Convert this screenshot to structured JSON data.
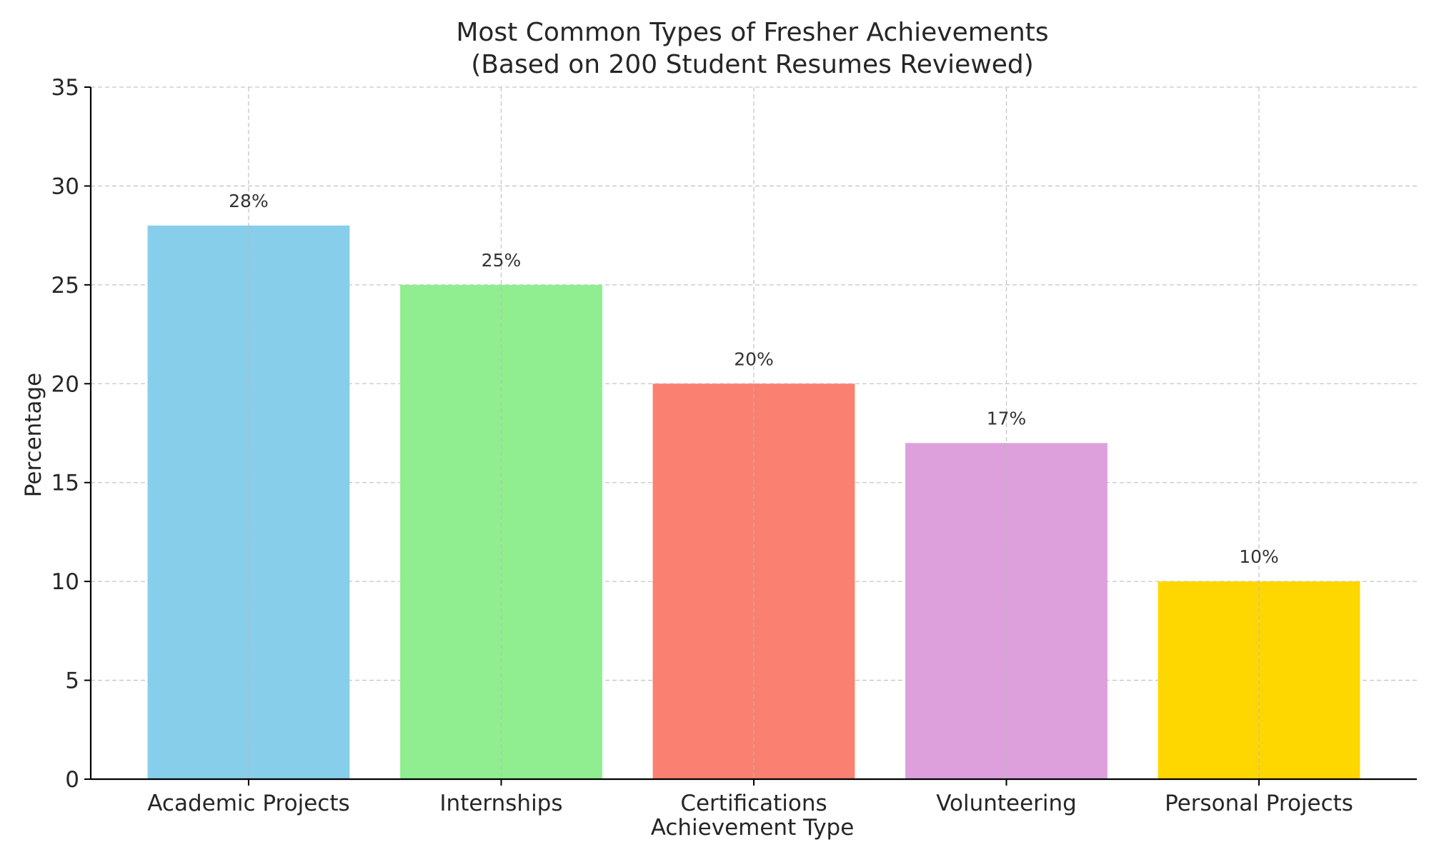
{
  "chart_data": {
    "type": "bar",
    "title_line1": "Most Common Types of Fresher Achievements",
    "title_line2": "(Based on 200 Student Resumes Reviewed)",
    "xlabel": "Achievement Type",
    "ylabel": "Percentage",
    "categories": [
      "Academic Projects",
      "Internships",
      "Certifications",
      "Volunteering",
      "Personal Projects"
    ],
    "values": [
      28,
      25,
      20,
      17,
      10
    ],
    "data_labels": [
      "28%",
      "25%",
      "20%",
      "17%",
      "10%"
    ],
    "colors": [
      "#87ceeb",
      "#90ee90",
      "#fa8072",
      "#dda0dd",
      "#ffd700"
    ],
    "ylim": [
      0,
      35
    ],
    "yticks": [
      0,
      5,
      10,
      15,
      20,
      25,
      30,
      35
    ],
    "grid": true
  }
}
